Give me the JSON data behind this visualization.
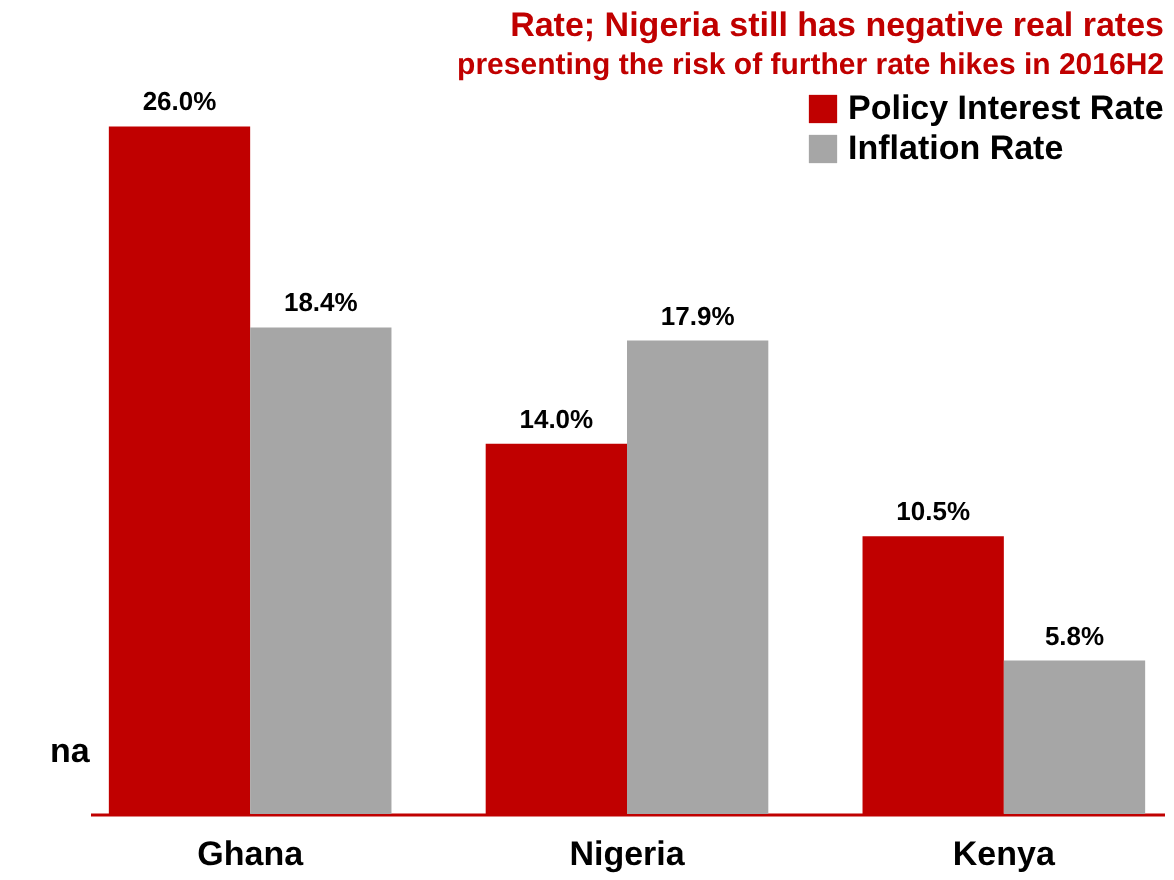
{
  "chart_data": {
    "type": "bar",
    "title": "Rate; Nigeria still has negative real rates",
    "subtitle": "presenting the risk of further rate hikes in 2016H2",
    "categories": [
      "Ghana",
      "Nigeria",
      "Kenya"
    ],
    "series": [
      {
        "name": "Policy Interest Rate",
        "color": "#c00000",
        "values": [
          26.0,
          14.0,
          10.5
        ],
        "value_labels": [
          "26.0%",
          "14.0%",
          "10.5%"
        ]
      },
      {
        "name": "Inflation Rate",
        "color": "#a6a6a6",
        "values": [
          18.4,
          17.9,
          5.8
        ],
        "value_labels": [
          "18.4%",
          "17.9%",
          "5.8%"
        ]
      }
    ],
    "legend": "top right",
    "annotations": [
      "na"
    ]
  }
}
